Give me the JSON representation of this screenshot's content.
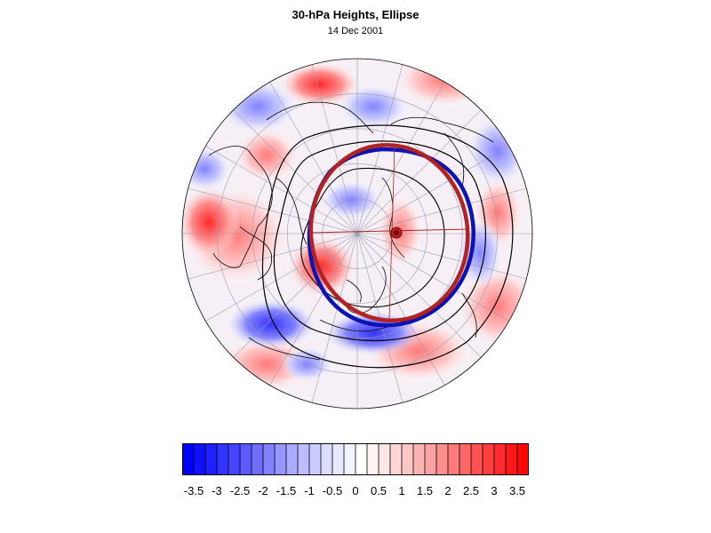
{
  "figure": {
    "title": "30-hPa Heights, Ellipse",
    "subtitle": "14 Dec 2001"
  },
  "colorbar": {
    "labels": [
      "-3.5",
      "-3",
      "-2.5",
      "-2",
      "-1.5",
      "-1",
      "-0.5",
      "0",
      "0.5",
      "1",
      "1.5",
      "2",
      "2.5",
      "3",
      "3.5"
    ],
    "min": -3.75,
    "max": 3.75,
    "step": 0.25,
    "colors": [
      "#0000ff",
      "#1010ff",
      "#2020ff",
      "#3333ff",
      "#4545ff",
      "#5a5aff",
      "#6e6eff",
      "#8282ff",
      "#9696ff",
      "#aaaaff",
      "#bcbcff",
      "#ccccff",
      "#dcdcff",
      "#e8e8ff",
      "#f3f3ff",
      "#ffffff",
      "#fff3f3",
      "#ffe6e6",
      "#ffd6d6",
      "#ffc6c6",
      "#ffb4b4",
      "#ffa2a2",
      "#ff8e8e",
      "#ff7a7a",
      "#ff6666",
      "#ff5252",
      "#ff3e3e",
      "#ff2a2a",
      "#ff1818",
      "#ff0808"
    ]
  },
  "map": {
    "projection": "polar stereographic (north pole)",
    "outline_color": "#000000",
    "ellipse_red_color": "#b22222",
    "ellipse_blue_color": "#0a14b4",
    "anomaly_pos_color": "#ff4d4d",
    "anomaly_neg_color": "#4d4dff"
  }
}
